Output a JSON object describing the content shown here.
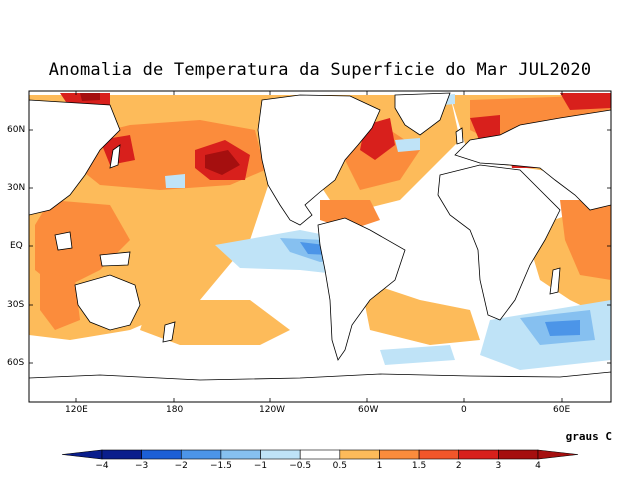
{
  "title": "Anomalia de Temperatura da Superficie do Mar JUL2020",
  "units": "graus C",
  "lat_labels": [
    "60N",
    "30N",
    "EQ",
    "30S",
    "60S"
  ],
  "lon_labels": [
    "120E",
    "180",
    "120W",
    "60W",
    "0",
    "60E"
  ],
  "colorbar": {
    "labels": [
      "-4",
      "-3",
      "-2",
      "-1.5",
      "-1",
      "-0.5",
      "0.5",
      "1",
      "1.5",
      "2",
      "3",
      "4"
    ],
    "colors": [
      "#0a1e8c",
      "#1c5fd6",
      "#4c95e8",
      "#86c0f0",
      "#bfe3f7",
      "#ffffff",
      "#fdbb5a",
      "#fb8c3c",
      "#f2562a",
      "#d8201c",
      "#a50f0f"
    ]
  },
  "colors": {
    "land_outline": "#000000",
    "weak_warm": "#fdbb5a",
    "warm": "#fb8c3c",
    "hot": "#d8201c",
    "very_hot": "#a50f0f",
    "cool": "#bfe3f7",
    "cold": "#86c0f0",
    "colder": "#4c95e8"
  }
}
